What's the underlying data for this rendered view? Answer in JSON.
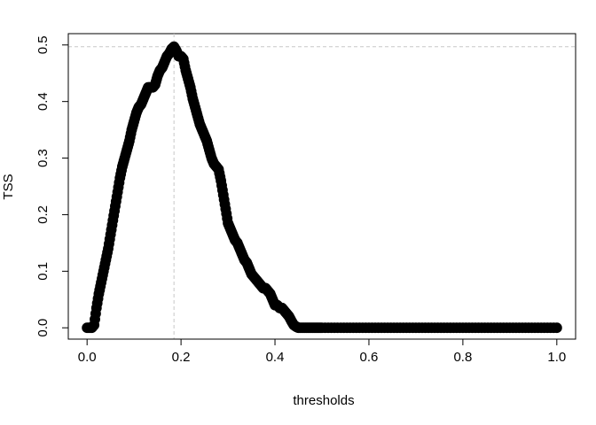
{
  "chart_data": {
    "type": "scatter",
    "xlabel": "thresholds",
    "ylabel": "TSS",
    "xlim": [
      -0.04,
      1.04
    ],
    "ylim": [
      -0.02,
      0.52
    ],
    "x_ticks": [
      0.0,
      0.2,
      0.4,
      0.6,
      0.8,
      1.0
    ],
    "x_tick_labels": [
      "0.0",
      "0.2",
      "0.4",
      "0.6",
      "0.8",
      "1.0"
    ],
    "y_ticks": [
      0.0,
      0.1,
      0.2,
      0.3,
      0.4,
      0.5
    ],
    "y_tick_labels": [
      "0.0",
      "0.1",
      "0.2",
      "0.3",
      "0.4",
      "0.5"
    ],
    "grid": false,
    "reference_lines": {
      "vertical_x": 0.185,
      "horizontal_y": 0.497,
      "color": "#c8c8c8",
      "style": "dashed"
    },
    "series": [
      {
        "color": "#000000",
        "points": [
          [
            0.0,
            0.0
          ],
          [
            0.01,
            0.0
          ],
          [
            0.015,
            0.005
          ],
          [
            0.02,
            0.035
          ],
          [
            0.025,
            0.06
          ],
          [
            0.03,
            0.08
          ],
          [
            0.035,
            0.1
          ],
          [
            0.04,
            0.12
          ],
          [
            0.045,
            0.14
          ],
          [
            0.05,
            0.165
          ],
          [
            0.055,
            0.19
          ],
          [
            0.06,
            0.215
          ],
          [
            0.065,
            0.24
          ],
          [
            0.07,
            0.265
          ],
          [
            0.075,
            0.285
          ],
          [
            0.08,
            0.3
          ],
          [
            0.085,
            0.315
          ],
          [
            0.09,
            0.33
          ],
          [
            0.095,
            0.35
          ],
          [
            0.1,
            0.365
          ],
          [
            0.105,
            0.38
          ],
          [
            0.11,
            0.39
          ],
          [
            0.115,
            0.395
          ],
          [
            0.12,
            0.405
          ],
          [
            0.125,
            0.415
          ],
          [
            0.13,
            0.425
          ],
          [
            0.135,
            0.425
          ],
          [
            0.14,
            0.425
          ],
          [
            0.145,
            0.43
          ],
          [
            0.15,
            0.445
          ],
          [
            0.155,
            0.455
          ],
          [
            0.16,
            0.46
          ],
          [
            0.165,
            0.47
          ],
          [
            0.17,
            0.48
          ],
          [
            0.175,
            0.485
          ],
          [
            0.18,
            0.493
          ],
          [
            0.185,
            0.497
          ],
          [
            0.19,
            0.49
          ],
          [
            0.195,
            0.48
          ],
          [
            0.2,
            0.48
          ],
          [
            0.205,
            0.475
          ],
          [
            0.21,
            0.455
          ],
          [
            0.215,
            0.44
          ],
          [
            0.22,
            0.425
          ],
          [
            0.225,
            0.405
          ],
          [
            0.23,
            0.39
          ],
          [
            0.235,
            0.375
          ],
          [
            0.24,
            0.36
          ],
          [
            0.245,
            0.35
          ],
          [
            0.25,
            0.34
          ],
          [
            0.255,
            0.33
          ],
          [
            0.26,
            0.315
          ],
          [
            0.265,
            0.3
          ],
          [
            0.27,
            0.29
          ],
          [
            0.275,
            0.285
          ],
          [
            0.28,
            0.28
          ],
          [
            0.285,
            0.26
          ],
          [
            0.29,
            0.235
          ],
          [
            0.295,
            0.21
          ],
          [
            0.3,
            0.185
          ],
          [
            0.305,
            0.175
          ],
          [
            0.31,
            0.165
          ],
          [
            0.315,
            0.155
          ],
          [
            0.32,
            0.15
          ],
          [
            0.325,
            0.14
          ],
          [
            0.33,
            0.13
          ],
          [
            0.335,
            0.12
          ],
          [
            0.34,
            0.115
          ],
          [
            0.345,
            0.105
          ],
          [
            0.35,
            0.095
          ],
          [
            0.355,
            0.09
          ],
          [
            0.36,
            0.085
          ],
          [
            0.365,
            0.08
          ],
          [
            0.37,
            0.075
          ],
          [
            0.375,
            0.07
          ],
          [
            0.38,
            0.07
          ],
          [
            0.385,
            0.065
          ],
          [
            0.39,
            0.06
          ],
          [
            0.395,
            0.05
          ],
          [
            0.4,
            0.04
          ],
          [
            0.405,
            0.04
          ],
          [
            0.41,
            0.035
          ],
          [
            0.415,
            0.035
          ],
          [
            0.42,
            0.03
          ],
          [
            0.425,
            0.025
          ],
          [
            0.43,
            0.02
          ],
          [
            0.435,
            0.012
          ],
          [
            0.44,
            0.005
          ],
          [
            0.445,
            0.002
          ],
          [
            0.45,
            0.0
          ],
          [
            0.46,
            0.0
          ],
          [
            0.47,
            0.0
          ],
          [
            0.48,
            0.0
          ],
          [
            0.49,
            0.0
          ],
          [
            0.5,
            0.0
          ],
          [
            0.52,
            0.0
          ],
          [
            0.54,
            0.0
          ],
          [
            0.56,
            0.0
          ],
          [
            0.58,
            0.0
          ],
          [
            0.6,
            0.0
          ],
          [
            0.62,
            0.0
          ],
          [
            0.64,
            0.0
          ],
          [
            0.66,
            0.0
          ],
          [
            0.68,
            0.0
          ],
          [
            0.7,
            0.0
          ],
          [
            0.72,
            0.0
          ],
          [
            0.74,
            0.0
          ],
          [
            0.76,
            0.0
          ],
          [
            0.78,
            0.0
          ],
          [
            0.8,
            0.0
          ],
          [
            0.82,
            0.0
          ],
          [
            0.84,
            0.0
          ],
          [
            0.86,
            0.0
          ],
          [
            0.88,
            0.0
          ],
          [
            0.9,
            0.0
          ],
          [
            0.92,
            0.0
          ],
          [
            0.94,
            0.0
          ],
          [
            0.96,
            0.0
          ],
          [
            0.98,
            0.0
          ],
          [
            1.0,
            0.0
          ]
        ]
      }
    ]
  }
}
